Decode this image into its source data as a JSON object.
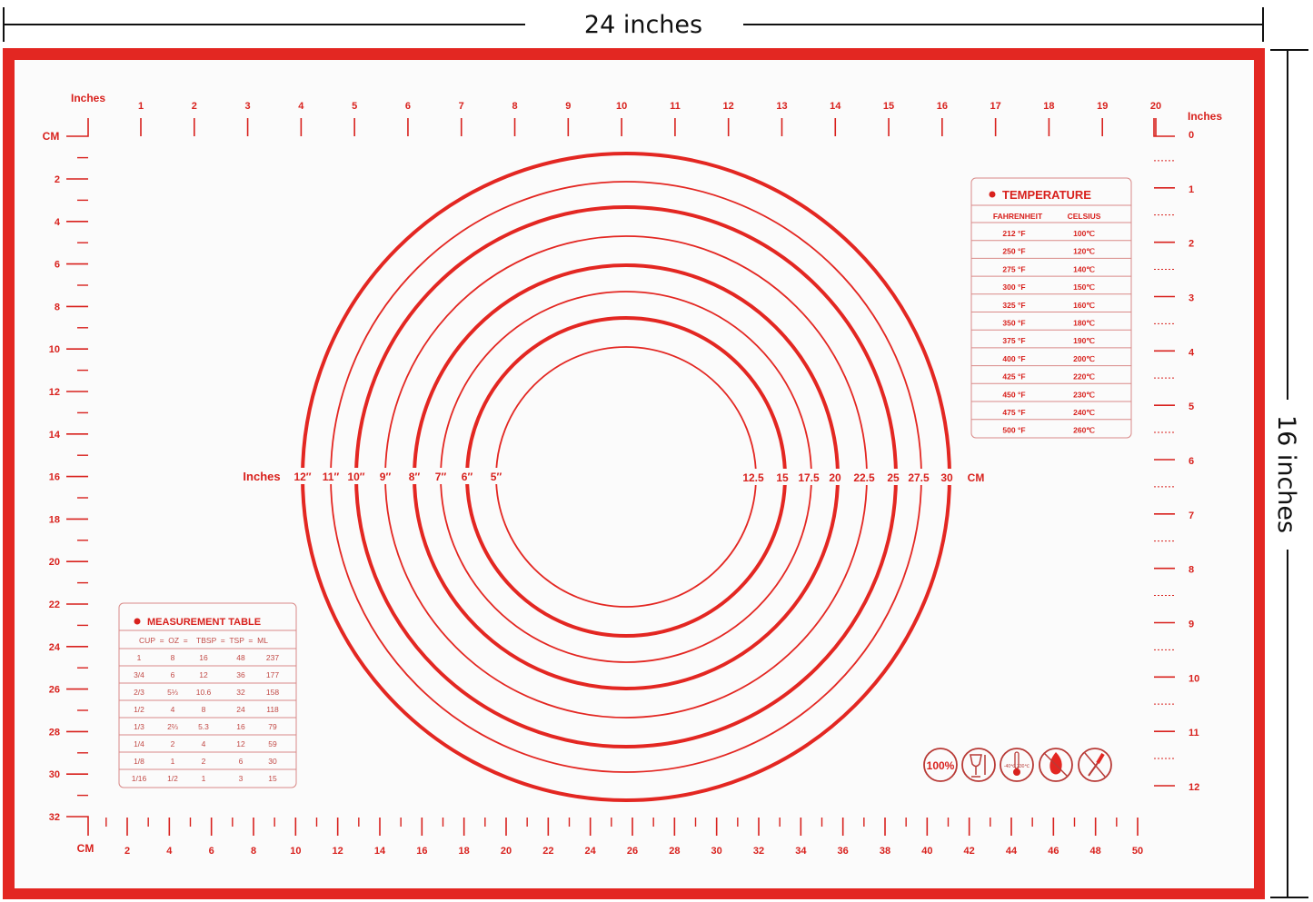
{
  "dimensions": {
    "width_label": "24 inches",
    "height_label": "16 inches"
  },
  "colors": {
    "mat_red": "#e32722",
    "text_red": "#d8211d",
    "mat_white": "#fbfbfb"
  },
  "top_ruler": {
    "unit_label": "Inches",
    "corner_label": "CM",
    "numbers": [
      "1",
      "2",
      "3",
      "4",
      "5",
      "6",
      "7",
      "8",
      "9",
      "10",
      "11",
      "12",
      "13",
      "14",
      "15",
      "16",
      "17",
      "18",
      "19",
      "20"
    ]
  },
  "right_ruler": {
    "unit_label": "Inches",
    "numbers": [
      "0",
      "1",
      "2",
      "3",
      "4",
      "5",
      "6",
      "7",
      "8",
      "9",
      "10",
      "11",
      "12"
    ]
  },
  "left_ruler": {
    "numbers": [
      "2",
      "4",
      "6",
      "8",
      "10",
      "12",
      "14",
      "16",
      "18",
      "20",
      "22",
      "24",
      "26",
      "28",
      "30",
      "32"
    ]
  },
  "bottom_ruler": {
    "unit_label": "CM",
    "numbers": [
      "2",
      "4",
      "6",
      "8",
      "10",
      "12",
      "14",
      "16",
      "18",
      "20",
      "22",
      "24",
      "26",
      "28",
      "30",
      "32",
      "34",
      "36",
      "38",
      "40",
      "42",
      "44",
      "46",
      "48",
      "50"
    ]
  },
  "circles": {
    "inch_unit_label": "Inches",
    "inch_labels": [
      "12″",
      "11″",
      "10″",
      "9″",
      "8″",
      "7″",
      "6″",
      "5″"
    ],
    "cm_labels": [
      "12.5",
      "15",
      "17.5",
      "20",
      "22.5",
      "25",
      "27.5",
      "30"
    ],
    "cm_unit_label": "CM"
  },
  "temperature_table": {
    "title": "TEMPERATURE",
    "headers": [
      "FAHRENHEIT",
      "CELSIUS"
    ],
    "rows": [
      [
        "212 °F",
        "100℃"
      ],
      [
        "250 °F",
        "120℃"
      ],
      [
        "275 °F",
        "140℃"
      ],
      [
        "300 °F",
        "150℃"
      ],
      [
        "325 °F",
        "160℃"
      ],
      [
        "350 °F",
        "180℃"
      ],
      [
        "375 °F",
        "190℃"
      ],
      [
        "400 °F",
        "200℃"
      ],
      [
        "425 °F",
        "220℃"
      ],
      [
        "450 °F",
        "230℃"
      ],
      [
        "475 °F",
        "240℃"
      ],
      [
        "500 °F",
        "260℃"
      ]
    ]
  },
  "measurement_table": {
    "title": "MEASUREMENT TABLE",
    "header": "CUP  =  OZ  =    TBSP  =  TSP  =  ML",
    "rows": [
      [
        "1",
        "8",
        "16",
        "48",
        "237"
      ],
      [
        "3/4",
        "6",
        "12",
        "36",
        "177"
      ],
      [
        "2/3",
        "5⅓",
        "10.6",
        "32",
        "158"
      ],
      [
        "1/2",
        "4",
        "8",
        "24",
        "118"
      ],
      [
        "1/3",
        "2⅔",
        "5.3",
        "16",
        "79"
      ],
      [
        "1/4",
        "2",
        "4",
        "12",
        "59"
      ],
      [
        "1/8",
        "1",
        "2",
        "6",
        "30"
      ],
      [
        "1/16",
        "1/2",
        "1",
        "3",
        "15"
      ]
    ]
  },
  "badges": [
    {
      "icon": "platinum-silicone-100-icon",
      "text": "100%"
    },
    {
      "icon": "food-safe-icon"
    },
    {
      "icon": "temperature-range-icon",
      "text": "-40℃ 230℃"
    },
    {
      "icon": "no-fire-icon"
    },
    {
      "icon": "no-knife-icon"
    }
  ]
}
